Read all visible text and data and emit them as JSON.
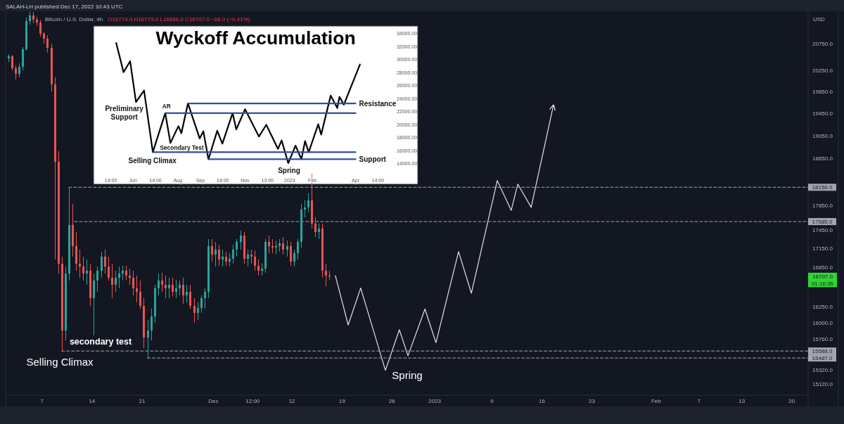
{
  "chart_data": [
    {
      "type": "candlestick",
      "title": "Bitcoin / U.S. Dollar, 4h",
      "subtitle": "O16774.0 H16779.0 L16686.0 C16707.0 −68.0 (−0.41%)",
      "ylabel": "USD",
      "annotations": [
        "SALAH-LH published Dec 17, 2022 10:43 UTC",
        "Selling Climax",
        "secondary test",
        "Spring",
        "16707.0\n01:16:35"
      ],
      "log": true,
      "xlim": [
        "2022-11-01T21:30",
        "2023-02-22T07:00"
      ],
      "xticks": [
        {
          "value": "2022-11-07",
          "label": "7"
        },
        {
          "value": "2022-11-14",
          "label": "14"
        },
        {
          "value": "2022-11-21",
          "label": "21"
        },
        {
          "value": "2022-12-01",
          "label": "Dec"
        },
        {
          "value": "2022-12-06T12:00",
          "label": "12:00"
        },
        {
          "value": "2022-12-12",
          "label": "12"
        },
        {
          "value": "2022-12-19",
          "label": "19"
        },
        {
          "value": "2022-12-26",
          "label": "26"
        },
        {
          "value": "2023-01-01",
          "label": "2023"
        },
        {
          "value": "2023-01-09",
          "label": "9"
        },
        {
          "value": "2023-01-16",
          "label": "16"
        },
        {
          "value": "2023-01-23",
          "label": "23"
        },
        {
          "value": "2023-02-01",
          "label": "Feb"
        },
        {
          "value": "2023-02-07",
          "label": "7"
        },
        {
          "value": "2023-02-13",
          "label": "13"
        },
        {
          "value": "2023-02-20",
          "label": "20"
        }
      ],
      "ylim": [
        14960,
        21390
      ],
      "yticks": [
        {
          "value": 20750,
          "label": "20750.0"
        },
        {
          "value": 20250,
          "label": "20250.0"
        },
        {
          "value": 19850,
          "label": "19850.0"
        },
        {
          "value": 19450,
          "label": "19450.0"
        },
        {
          "value": 19050,
          "label": "19050.0"
        },
        {
          "value": 18650,
          "label": "18650.0"
        },
        {
          "value": 17850,
          "label": "17850.0"
        },
        {
          "value": 17450,
          "label": "17450.0"
        },
        {
          "value": 17150,
          "label": "17150.0"
        },
        {
          "value": 16850,
          "label": "16850.0"
        },
        {
          "value": 16250,
          "label": "16250.0"
        },
        {
          "value": 16000,
          "label": "16000.0"
        },
        {
          "value": 15760,
          "label": "15760.0"
        },
        {
          "value": 15320,
          "label": "15320.0"
        },
        {
          "value": 15120,
          "label": "15120.0"
        }
      ],
      "x": [
        "2022-11-02T06:00",
        "2022-11-02T18:00",
        "2022-11-03T06:00",
        "2022-11-03T18:00",
        "2022-11-04T06:00",
        "2022-11-04T18:00",
        "2022-11-05T06:00",
        "2022-11-05T18:00",
        "2022-11-06T06:00",
        "2022-11-06T18:00",
        "2022-11-07T06:00",
        "2022-11-07T18:00",
        "2022-11-08T06:00",
        "2022-11-08T18:00",
        "2022-11-09T06:00",
        "2022-11-09T18:00",
        "2022-11-10T06:00",
        "2022-11-10T18:00",
        "2022-11-11T06:00",
        "2022-11-11T18:00",
        "2022-11-12T06:00",
        "2022-11-12T18:00",
        "2022-11-13T06:00",
        "2022-11-13T18:00",
        "2022-11-14T06:00",
        "2022-11-14T18:00",
        "2022-11-15T06:00",
        "2022-11-15T18:00",
        "2022-11-16T06:00",
        "2022-11-16T18:00",
        "2022-11-17T06:00",
        "2022-11-17T18:00",
        "2022-11-18T06:00",
        "2022-11-18T18:00",
        "2022-11-19T06:00",
        "2022-11-19T18:00",
        "2022-11-20T06:00",
        "2022-11-20T18:00",
        "2022-11-21T06:00",
        "2022-11-21T18:00",
        "2022-11-22T06:00",
        "2022-11-22T18:00",
        "2022-11-23T06:00",
        "2022-11-23T18:00",
        "2022-11-24T06:00",
        "2022-11-24T18:00",
        "2022-11-25T06:00",
        "2022-11-25T18:00",
        "2022-11-26T06:00",
        "2022-11-26T18:00",
        "2022-11-27T06:00",
        "2022-11-27T18:00",
        "2022-11-28T06:00",
        "2022-11-28T18:00",
        "2022-11-29T06:00",
        "2022-11-29T18:00",
        "2022-11-30T06:00",
        "2022-11-30T18:00",
        "2022-12-01T06:00",
        "2022-12-01T18:00",
        "2022-12-02T06:00",
        "2022-12-02T18:00",
        "2022-12-03T06:00",
        "2022-12-03T18:00",
        "2022-12-04T06:00",
        "2022-12-04T18:00",
        "2022-12-05T06:00",
        "2022-12-05T18:00",
        "2022-12-06T06:00",
        "2022-12-06T18:00",
        "2022-12-07T06:00",
        "2022-12-07T18:00",
        "2022-12-08T06:00",
        "2022-12-08T18:00",
        "2022-12-09T06:00",
        "2022-12-09T18:00",
        "2022-12-10T06:00",
        "2022-12-10T18:00",
        "2022-12-11T06:00",
        "2022-12-11T18:00",
        "2022-12-12T06:00",
        "2022-12-12T18:00",
        "2022-12-13T06:00",
        "2022-12-13T18:00",
        "2022-12-14T06:00",
        "2022-12-14T18:00",
        "2022-12-15T06:00",
        "2022-12-15T18:00",
        "2022-12-16T06:00",
        "2022-12-16T18:00",
        "2022-12-17T06:00"
      ],
      "ohlc": [
        [
          20470,
          20550,
          20400,
          20510
        ],
        [
          20510,
          20540,
          20240,
          20280
        ],
        [
          20280,
          20340,
          20070,
          20180
        ],
        [
          20180,
          20380,
          20110,
          20310
        ],
        [
          20310,
          20690,
          20240,
          20650
        ],
        [
          20650,
          21260,
          20620,
          21190
        ],
        [
          21190,
          21370,
          21120,
          21310
        ],
        [
          21310,
          21380,
          21150,
          21220
        ],
        [
          21220,
          21280,
          21100,
          21170
        ],
        [
          21170,
          21220,
          20890,
          20950
        ],
        [
          20950,
          20990,
          20750,
          20850
        ],
        [
          20850,
          20920,
          20580,
          20670
        ],
        [
          20670,
          20750,
          19850,
          19980
        ],
        [
          19980,
          20110,
          16970,
          18590
        ],
        [
          18590,
          18780,
          16750,
          16910
        ],
        [
          16910,
          17020,
          15588,
          15890
        ],
        [
          15890,
          16860,
          15740,
          16750
        ],
        [
          16750,
          18156,
          16640,
          17530
        ],
        [
          17530,
          17880,
          17020,
          17190
        ],
        [
          17190,
          17420,
          16800,
          16910
        ],
        [
          16910,
          17130,
          16690,
          16860
        ],
        [
          16860,
          17020,
          16640,
          16750
        ],
        [
          16750,
          16970,
          16580,
          16800
        ],
        [
          16800,
          16910,
          16260,
          16370
        ],
        [
          16370,
          16750,
          15820,
          16640
        ],
        [
          16640,
          16860,
          16470,
          16800
        ],
        [
          16800,
          17100,
          16690,
          17020
        ],
        [
          17020,
          17130,
          16750,
          16860
        ],
        [
          16860,
          17020,
          16640,
          16690
        ],
        [
          16690,
          16910,
          16370,
          16580
        ],
        [
          16580,
          16800,
          16470,
          16690
        ],
        [
          16690,
          16860,
          16530,
          16750
        ],
        [
          16750,
          16880,
          16640,
          16800
        ],
        [
          16800,
          16880,
          16660,
          16720
        ],
        [
          16720,
          16830,
          16580,
          16690
        ],
        [
          16690,
          16800,
          16420,
          16530
        ],
        [
          16530,
          16720,
          16310,
          16470
        ],
        [
          16470,
          16640,
          16210,
          16260
        ],
        [
          16260,
          16370,
          15630,
          15790
        ],
        [
          15790,
          16050,
          15487,
          15890
        ],
        [
          15890,
          16210,
          15740,
          16100
        ],
        [
          16100,
          16580,
          16000,
          16530
        ],
        [
          16530,
          16750,
          16420,
          16640
        ],
        [
          16640,
          16770,
          16470,
          16580
        ],
        [
          16580,
          16720,
          16370,
          16530
        ],
        [
          16530,
          16690,
          16370,
          16580
        ],
        [
          16580,
          16690,
          16400,
          16470
        ],
        [
          16470,
          16660,
          16370,
          16530
        ],
        [
          16530,
          16640,
          16420,
          16580
        ],
        [
          16580,
          16690,
          16290,
          16420
        ],
        [
          16420,
          16580,
          16310,
          16470
        ],
        [
          16470,
          16580,
          16210,
          16260
        ],
        [
          16260,
          16370,
          16000,
          16150
        ],
        [
          16150,
          16310,
          16050,
          16230
        ],
        [
          16230,
          16420,
          16150,
          16370
        ],
        [
          16370,
          16530,
          16210,
          16470
        ],
        [
          16470,
          17300,
          16370,
          17190
        ],
        [
          17190,
          17300,
          16940,
          17050
        ],
        [
          17050,
          17250,
          16860,
          17130
        ],
        [
          17130,
          17210,
          16880,
          16970
        ],
        [
          16970,
          17130,
          16860,
          17020
        ],
        [
          17020,
          17100,
          16880,
          16940
        ],
        [
          16940,
          17080,
          16860,
          16990
        ],
        [
          16990,
          17210,
          16910,
          17130
        ],
        [
          17130,
          17300,
          17020,
          17250
        ],
        [
          17250,
          17440,
          17130,
          17360
        ],
        [
          17360,
          17420,
          16910,
          16990
        ],
        [
          16990,
          17130,
          16860,
          17050
        ],
        [
          17050,
          17130,
          16910,
          17020
        ],
        [
          17020,
          17120,
          16800,
          16880
        ],
        [
          16880,
          16970,
          16720,
          16800
        ],
        [
          16800,
          16910,
          16720,
          16830
        ],
        [
          16830,
          17300,
          16770,
          17250
        ],
        [
          17250,
          17360,
          17080,
          17190
        ],
        [
          17190,
          17300,
          17080,
          17170
        ],
        [
          17170,
          17280,
          17050,
          17190
        ],
        [
          17190,
          17300,
          17100,
          17230
        ],
        [
          17230,
          17330,
          17050,
          17130
        ],
        [
          17130,
          17280,
          17020,
          17190
        ],
        [
          17190,
          17250,
          16880,
          16940
        ],
        [
          16940,
          17130,
          16860,
          17080
        ],
        [
          17080,
          17300,
          16970,
          17250
        ],
        [
          17250,
          17880,
          17170,
          17780
        ],
        [
          17780,
          17940,
          17650,
          17820
        ],
        [
          17820,
          18050,
          17740,
          17940
        ],
        [
          17940,
          18390,
          17470,
          17550
        ],
        [
          17550,
          17650,
          17330,
          17420
        ],
        [
          17420,
          17550,
          17300,
          17470
        ],
        [
          17470,
          17550,
          16690,
          16800
        ],
        [
          16800,
          16910,
          16560,
          16720
        ],
        [
          16720,
          16800,
          16660,
          16707
        ]
      ],
      "colors": [
        "#26a69a",
        "#ef5350",
        "#ef5350",
        "#26a69a",
        "#26a69a",
        "#26a69a",
        "#26a69a",
        "#ef5350",
        "#ef5350",
        "#ef5350",
        "#ef5350",
        "#ef5350",
        "#ef5350",
        "#ef5350",
        "#ef5350",
        "#ef5350",
        "#26a69a",
        "#26a69a",
        "#ef5350",
        "#ef5350",
        "#ef5350",
        "#ef5350",
        "#26a69a",
        "#ef5350",
        "#26a69a",
        "#26a69a",
        "#26a69a",
        "#ef5350",
        "#ef5350",
        "#ef5350",
        "#26a69a",
        "#26a69a",
        "#26a69a",
        "#ef5350",
        "#ef5350",
        "#ef5350",
        "#ef5350",
        "#ef5350",
        "#ef5350",
        "#26a69a",
        "#26a69a",
        "#26a69a",
        "#26a69a",
        "#ef5350",
        "#ef5350",
        "#26a69a",
        "#ef5350",
        "#26a69a",
        "#26a69a",
        "#ef5350",
        "#26a69a",
        "#ef5350",
        "#ef5350",
        "#26a69a",
        "#26a69a",
        "#26a69a",
        "#26a69a",
        "#ef5350",
        "#26a69a",
        "#ef5350",
        "#26a69a",
        "#ef5350",
        "#26a69a",
        "#26a69a",
        "#26a69a",
        "#26a69a",
        "#ef5350",
        "#26a69a",
        "#ef5350",
        "#ef5350",
        "#ef5350",
        "#26a69a",
        "#26a69a",
        "#ef5350",
        "#ef5350",
        "#26a69a",
        "#26a69a",
        "#ef5350",
        "#26a69a",
        "#ef5350",
        "#26a69a",
        "#26a69a",
        "#26a69a",
        "#26a69a",
        "#26a69a",
        "#ef5350",
        "#ef5350",
        "#26a69a",
        "#ef5350",
        "#ef5350",
        "#ef5350"
      ],
      "series": [
        {
          "type": "line",
          "x": [
            "2022-12-18T02:00",
            "2022-12-19T21:00",
            "2022-12-21T15:00",
            "2022-12-25T02:00",
            "2022-12-27T01:00",
            "2022-12-28T06:00",
            "2022-12-30T15:00",
            "2023-01-01T04:00",
            "2023-01-04T08:00",
            "2023-01-06T03:00",
            "2023-01-09T18:00",
            "2023-01-11T17:00",
            "2023-01-12T15:00",
            "2023-01-14T12:00",
            "2023-01-17T15:00"
          ],
          "values": [
            16720,
            15970,
            16530,
            15310,
            15900,
            15520,
            16210,
            15710,
            17100,
            16450,
            18270,
            17770,
            18210,
            17820,
            19600
          ],
          "color": "#e0e3eb"
        },
        {
          "type": "line",
          "x": [
            "2022-11-10T18:00",
            "2023-02-22T07:00"
          ],
          "values": [
            18156,
            18156
          ],
          "color": "#a3a6af",
          "line_style": "dashed",
          "value_labels": [
            null,
            "18156.0"
          ]
        },
        {
          "type": "line",
          "x": [
            "2022-11-11T13:00",
            "2023-02-22T07:00"
          ],
          "values": [
            17585,
            17585
          ],
          "color": "#a3a6af",
          "line_style": "dashed",
          "value_labels": [
            null,
            "17585.0"
          ]
        },
        {
          "type": "line",
          "x": [
            "2022-11-09T18:00",
            "2023-02-22T07:00"
          ],
          "values": [
            15588,
            15588
          ],
          "color": "#a3a6af",
          "line_style": "dashed",
          "value_labels": [
            null,
            "15588.0"
          ]
        },
        {
          "type": "line",
          "x": [
            "2022-11-21T18:00",
            "2023-02-22T07:00"
          ],
          "values": [
            15487,
            15487
          ],
          "color": "#a3a6af",
          "line_style": "dashed",
          "value_labels": [
            null,
            "15487.0"
          ]
        }
      ]
    },
    {
      "type": "line",
      "title": "Wyckoff Accumulation",
      "annotations": [
        "Preliminary\nSupport",
        "AR",
        "Secondary Test",
        "Selling Climax",
        "Spring"
      ],
      "xlim": [
        "2022-04-08",
        "2023-06-25"
      ],
      "xticks": [
        {
          "value": "2022-05-01T14:00",
          "label": "14:00"
        },
        {
          "value": "2022-06-01",
          "label": "Jun"
        },
        {
          "value": "2022-07-01T14:00",
          "label": "14:00"
        },
        {
          "value": "2022-08-01",
          "label": "Aug"
        },
        {
          "value": "2022-09-01",
          "label": "Sep"
        },
        {
          "value": "2022-10-01T14:00",
          "label": "14:00"
        },
        {
          "value": "2022-11-01",
          "label": "Nov"
        },
        {
          "value": "2022-12-01T13:00",
          "label": "13:00"
        },
        {
          "value": "2023-01-01",
          "label": "2023"
        },
        {
          "value": "2023-02-01",
          "label": "Feb"
        },
        {
          "value": "2023-04-01",
          "label": "Apr"
        },
        {
          "value": "2023-05-01T14:00",
          "label": "14:00"
        }
      ],
      "ylim": [
        10750,
        35120
      ],
      "yticks": [
        {
          "value": 14000,
          "label": "14000.00"
        },
        {
          "value": 16000,
          "label": "16000.00"
        },
        {
          "value": 18000,
          "label": "18000.00"
        },
        {
          "value": 20000,
          "label": "20000.00"
        },
        {
          "value": 22000,
          "label": "22000.00"
        },
        {
          "value": 24000,
          "label": "24000.00"
        },
        {
          "value": 26000,
          "label": "26000.00"
        },
        {
          "value": 28000,
          "label": "28000.00"
        },
        {
          "value": 30000,
          "label": "30000.00"
        },
        {
          "value": 32000,
          "label": "32000.00"
        },
        {
          "value": 34000,
          "label": "34000.00"
        }
      ],
      "series": [
        {
          "x": [
            "2022-05-09",
            "2022-05-19",
            "2022-05-28",
            "2022-06-05",
            "2022-06-16",
            "2022-06-28",
            "2022-07-15",
            "2022-07-22",
            "2022-08-02",
            "2022-08-06",
            "2022-08-15",
            "2022-08-31",
            "2022-09-05",
            "2022-09-12",
            "2022-09-24",
            "2022-10-01",
            "2022-10-15",
            "2022-10-20",
            "2022-11-01",
            "2022-11-20",
            "2022-11-30",
            "2022-12-16",
            "2022-12-21",
            "2022-12-30",
            "2023-01-09",
            "2023-01-17",
            "2023-01-22",
            "2023-01-27",
            "2023-02-09",
            "2023-02-13",
            "2023-02-26",
            "2023-03-07",
            "2023-03-10",
            "2023-03-16",
            "2023-04-07"
          ],
          "values": [
            32500,
            28000,
            29700,
            23400,
            25200,
            15700,
            21700,
            17100,
            19700,
            18600,
            23200,
            17800,
            18900,
            14600,
            19000,
            17000,
            21700,
            19200,
            22300,
            18100,
            19900,
            16200,
            17500,
            14000,
            16700,
            14600,
            17400,
            15700,
            20000,
            18400,
            24400,
            22500,
            24200,
            23000,
            29200
          ],
          "color": "#000000"
        },
        {
          "name": "Resistance",
          "x": [
            "2022-08-15",
            "2023-04-01"
          ],
          "values": [
            23200,
            23200
          ],
          "color": "#2f4f9f"
        },
        {
          "x": [
            "2022-07-15",
            "2023-04-01"
          ],
          "values": [
            21700,
            21700
          ],
          "color": "#2f4f9f"
        },
        {
          "x": [
            "2022-06-28",
            "2023-04-01"
          ],
          "values": [
            15700,
            15700
          ],
          "color": "#2f4f9f"
        },
        {
          "name": "Support",
          "x": [
            "2022-09-12",
            "2023-04-01"
          ],
          "values": [
            14600,
            14600
          ],
          "color": "#2f4f9f"
        }
      ]
    }
  ]
}
